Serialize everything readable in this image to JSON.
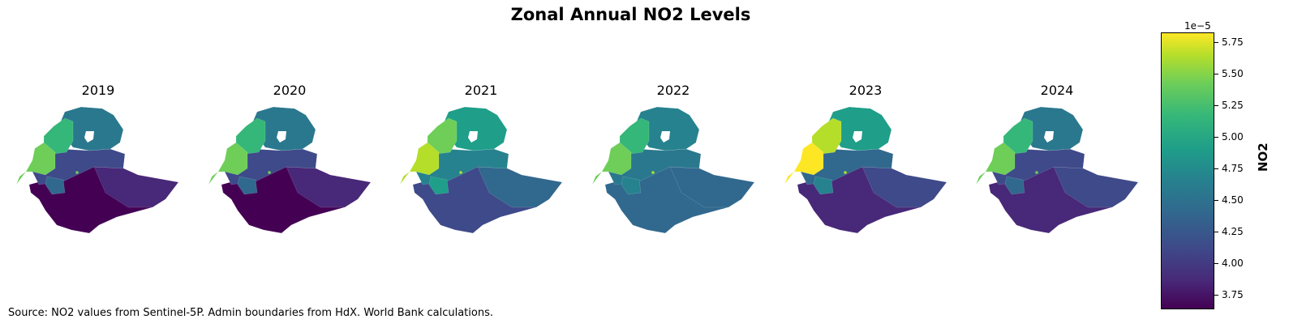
{
  "title": "Zonal Annual NO2 Levels",
  "source": "Source: NO2 values from Sentinel-5P. Admin boundaries from HdX. World Bank calculations.",
  "colorbar": {
    "label": "NO2",
    "exponent": "1e−5",
    "ticks": [
      "5.75",
      "5.50",
      "5.25",
      "5.00",
      "4.75",
      "4.50",
      "4.25",
      "4.00",
      "3.75"
    ],
    "colormap": "viridis",
    "range": [
      3.62,
      5.82
    ]
  },
  "panels": [
    {
      "year": "2019",
      "colors": {
        "north": "#2a788e",
        "northwest": "#35b779",
        "west": "#6ece58",
        "center": "#3e4a89",
        "east": "#482878",
        "south": "#440154",
        "cap": "#31688e",
        "dot": "#6ece58"
      }
    },
    {
      "year": "2020",
      "colors": {
        "north": "#2a788e",
        "northwest": "#35b779",
        "west": "#6ece58",
        "center": "#3e4a89",
        "east": "#482878",
        "south": "#440154",
        "cap": "#31688e",
        "dot": "#6ece58"
      }
    },
    {
      "year": "2021",
      "colors": {
        "north": "#1f9e89",
        "northwest": "#6ece58",
        "west": "#b5de2b",
        "center": "#26828e",
        "east": "#31688e",
        "south": "#3e4a89",
        "cap": "#1f9e89",
        "dot": "#b5de2b"
      }
    },
    {
      "year": "2022",
      "colors": {
        "north": "#26828e",
        "northwest": "#35b779",
        "west": "#6ece58",
        "center": "#2a788e",
        "east": "#31688e",
        "south": "#31688e",
        "cap": "#26828e",
        "dot": "#b5de2b"
      }
    },
    {
      "year": "2023",
      "colors": {
        "north": "#1f9e89",
        "northwest": "#b5de2b",
        "west": "#fde725",
        "center": "#31688e",
        "east": "#3e4a89",
        "south": "#482878",
        "cap": "#26828e",
        "dot": "#b5de2b"
      }
    },
    {
      "year": "2024",
      "colors": {
        "north": "#2a788e",
        "northwest": "#35b779",
        "west": "#6ece58",
        "center": "#3e4a89",
        "east": "#3e4a89",
        "south": "#482878",
        "cap": "#31688e",
        "dot": "#6ece58"
      }
    }
  ]
}
